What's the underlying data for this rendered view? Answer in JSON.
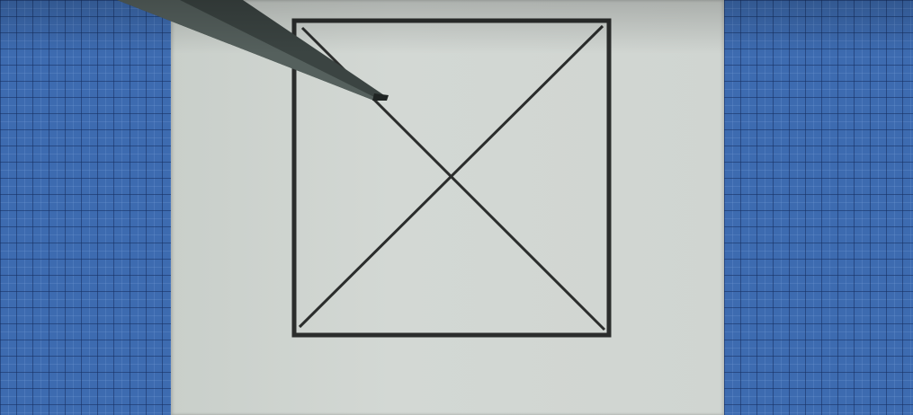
{
  "scene": {
    "subject": "hand-drawn-square-with-diagonals",
    "colors": {
      "mat": "#3d6bb0",
      "paper": "#d0d5d1",
      "ink": "#2a2c2b",
      "pen": "#3f4846"
    },
    "icons": [
      "pen-tip-icon"
    ]
  }
}
